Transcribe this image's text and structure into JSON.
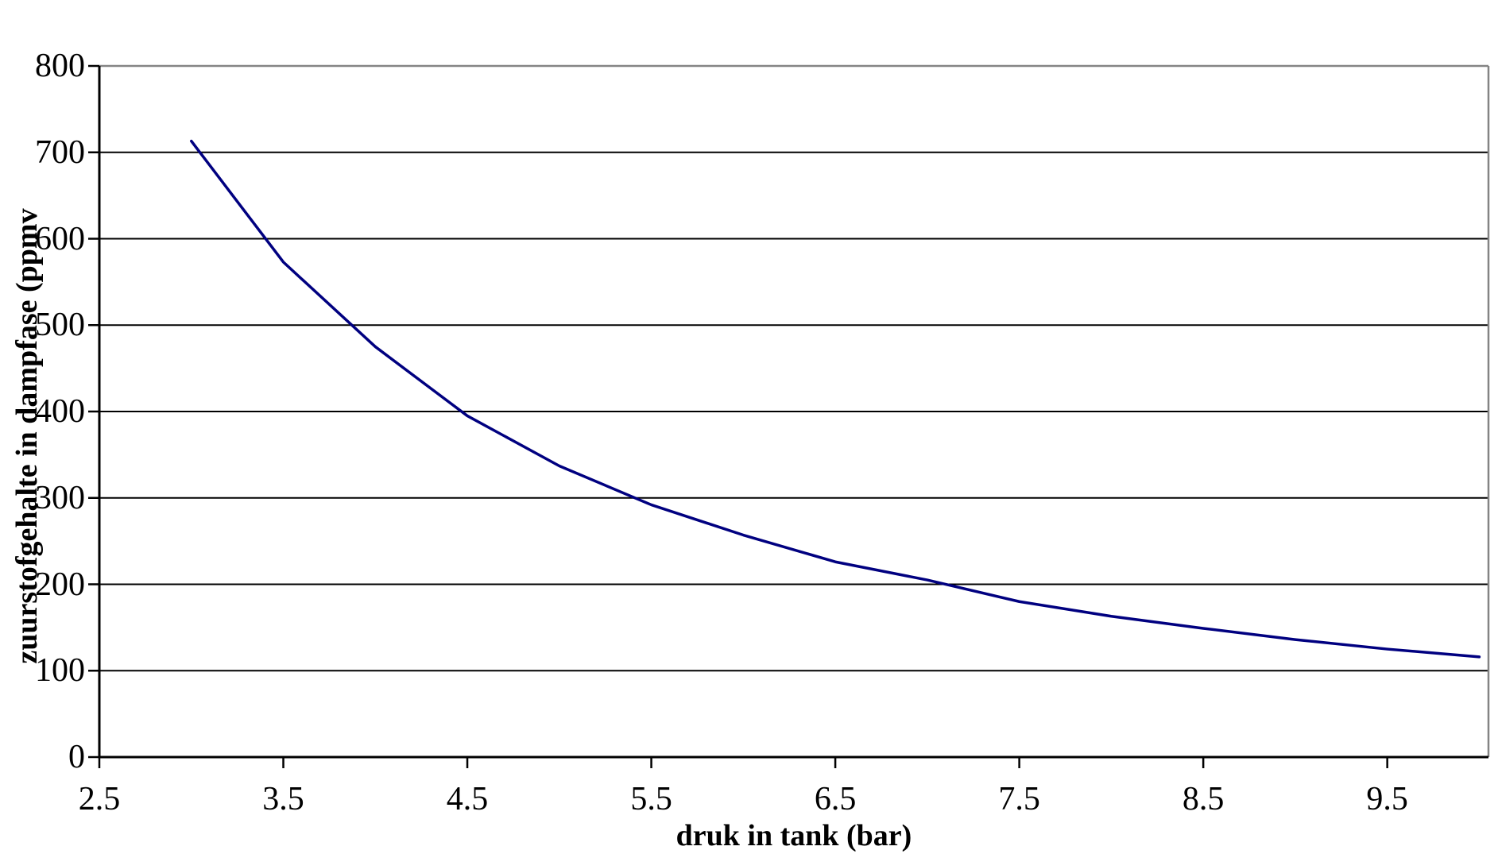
{
  "chart_data": {
    "type": "line",
    "title": "",
    "xlabel": "druk in tank (bar)",
    "ylabel": "zuurstofgehalte in dampfase (ppmv",
    "xlim": [
      2.5,
      10.05
    ],
    "ylim": [
      0,
      800
    ],
    "x_tick_labels": [
      "2.5",
      "3.5",
      "4.5",
      "5.5",
      "6.5",
      "7.5",
      "8.5",
      "9.5"
    ],
    "y_tick_labels": [
      "0",
      "100",
      "200",
      "300",
      "400",
      "500",
      "600",
      "700",
      "800"
    ],
    "grid": "horizontal-only",
    "legend_position": "none",
    "series": [
      {
        "color": "#000080",
        "x": [
          3.0,
          3.5,
          4.0,
          4.5,
          5.0,
          5.5,
          6.0,
          6.5,
          7.0,
          7.5,
          8.0,
          8.5,
          9.0,
          9.5,
          10.0
        ],
        "y": [
          713,
          573,
          475,
          395,
          337,
          292,
          257,
          226,
          205,
          180,
          163,
          149,
          136,
          125,
          116
        ]
      }
    ]
  },
  "colors": {
    "line": "#000080",
    "gridline": "#000000",
    "axis": "#000000",
    "plot_border": "#848484",
    "text": "#000000",
    "background": "#ffffff"
  }
}
